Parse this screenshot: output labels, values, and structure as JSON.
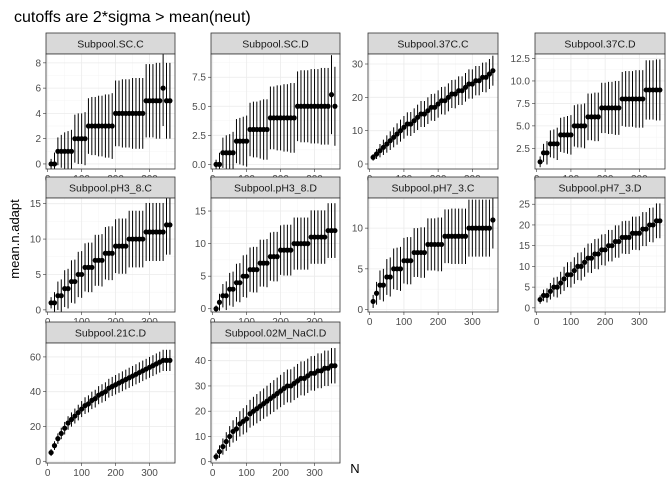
{
  "chart_data": {
    "type": "scatter",
    "title": "cutoffs are 2*sigma > mean(neut)",
    "xlabel": "N",
    "ylabel": "mean.n.adapt",
    "xlim": [
      -5,
      375
    ],
    "x_ticks": [
      0,
      100,
      200,
      300
    ],
    "grid": true,
    "facets": [
      {
        "name": "Subpool.SC.C",
        "ylim": [
          -0.4,
          8.7
        ],
        "y_ticks": [
          0,
          2,
          4,
          6,
          8
        ],
        "y_tick_labels": [
          "0",
          "2",
          "4",
          "6",
          "8"
        ],
        "x": [
          10,
          20,
          30,
          40,
          50,
          60,
          70,
          80,
          90,
          100,
          110,
          120,
          130,
          140,
          150,
          160,
          170,
          180,
          190,
          200,
          210,
          220,
          230,
          240,
          250,
          260,
          270,
          280,
          290,
          300,
          310,
          320,
          330,
          340,
          350,
          360
        ],
        "y": [
          0,
          0,
          1,
          1,
          1,
          1,
          1,
          2,
          2,
          2,
          2,
          3,
          3,
          3,
          3,
          3,
          3,
          3,
          3,
          4,
          4,
          4,
          4,
          4,
          4,
          4,
          4,
          4,
          5,
          5,
          5,
          5,
          5,
          6,
          5,
          5
        ],
        "err": [
          0.4,
          0.9,
          1.1,
          1.3,
          1.5,
          1.6,
          1.7,
          1.9,
          2.0,
          2.0,
          2.1,
          2.2,
          2.3,
          2.3,
          2.4,
          2.4,
          2.5,
          2.5,
          2.6,
          2.6,
          2.6,
          2.7,
          2.7,
          2.7,
          2.8,
          2.8,
          2.8,
          2.8,
          2.9,
          2.9,
          2.9,
          3.0,
          3.0,
          3.0,
          3.0,
          3.0
        ]
      },
      {
        "name": "Subpool.SC.D",
        "ylim": [
          -0.4,
          9.5
        ],
        "y_ticks": [
          0,
          2.5,
          5,
          7.5
        ],
        "y_tick_labels": [
          "0.0",
          "2.5",
          "5.0",
          "7.5"
        ],
        "x": [
          10,
          20,
          30,
          40,
          50,
          60,
          70,
          80,
          90,
          100,
          110,
          120,
          130,
          140,
          150,
          160,
          170,
          180,
          190,
          200,
          210,
          220,
          230,
          240,
          250,
          260,
          270,
          280,
          290,
          300,
          310,
          320,
          330,
          340,
          350,
          360
        ],
        "y": [
          0,
          0,
          1,
          1,
          1,
          1,
          2,
          2,
          2,
          2,
          3,
          3,
          3,
          3,
          3,
          3,
          4,
          4,
          4,
          4,
          4,
          4,
          4,
          4,
          5,
          5,
          5,
          5,
          5,
          5,
          5,
          5,
          5,
          5,
          6,
          5
        ],
        "err": [
          0.4,
          1.0,
          1.3,
          1.5,
          1.6,
          1.8,
          1.9,
          2.0,
          2.1,
          2.2,
          2.3,
          2.4,
          2.4,
          2.5,
          2.6,
          2.6,
          2.7,
          2.7,
          2.8,
          2.8,
          2.9,
          2.9,
          3.0,
          3.0,
          3.0,
          3.1,
          3.1,
          3.1,
          3.2,
          3.2,
          3.2,
          3.3,
          3.3,
          3.3,
          3.4,
          3.4
        ]
      },
      {
        "name": "Subpool.37C.C",
        "ylim": [
          -1.5,
          33
        ],
        "y_ticks": [
          0,
          10,
          20,
          30
        ],
        "y_tick_labels": [
          "0",
          "10",
          "20",
          "30"
        ],
        "x": [
          10,
          20,
          30,
          40,
          50,
          60,
          70,
          80,
          90,
          100,
          110,
          120,
          130,
          140,
          150,
          160,
          170,
          180,
          190,
          200,
          210,
          220,
          230,
          240,
          250,
          260,
          270,
          280,
          290,
          300,
          310,
          320,
          330,
          340,
          350,
          360
        ],
        "y": [
          2,
          3,
          4,
          5,
          6,
          7,
          8,
          9,
          10,
          11,
          12,
          12,
          13,
          14,
          15,
          15,
          16,
          17,
          17,
          18,
          19,
          19,
          20,
          21,
          21,
          22,
          22,
          23,
          24,
          24,
          25,
          25,
          26,
          26,
          27,
          28
        ],
        "err": [
          1.0,
          1.5,
          2.0,
          2.3,
          2.6,
          2.8,
          3.0,
          3.2,
          3.3,
          3.4,
          3.5,
          3.6,
          3.7,
          3.8,
          3.9,
          3.9,
          4.0,
          4.0,
          4.1,
          4.1,
          4.1,
          4.2,
          4.2,
          4.2,
          4.3,
          4.3,
          4.3,
          4.3,
          4.4,
          4.4,
          4.4,
          4.4,
          4.4,
          4.5,
          4.5,
          4.5
        ]
      },
      {
        "name": "Subpool.37C.D",
        "ylim": [
          0.2,
          13
        ],
        "y_ticks": [
          2.5,
          5,
          7.5,
          10,
          12.5
        ],
        "y_tick_labels": [
          "2.5",
          "5.0",
          "7.5",
          "10.0",
          "12.5"
        ],
        "x": [
          10,
          20,
          30,
          40,
          50,
          60,
          70,
          80,
          90,
          100,
          110,
          120,
          130,
          140,
          150,
          160,
          170,
          180,
          190,
          200,
          210,
          220,
          230,
          240,
          250,
          260,
          270,
          280,
          290,
          300,
          310,
          320,
          330,
          340,
          350,
          360
        ],
        "y": [
          1,
          2,
          2,
          3,
          3,
          3,
          4,
          4,
          4,
          4,
          5,
          5,
          5,
          5,
          6,
          6,
          6,
          6,
          7,
          7,
          7,
          7,
          7,
          7,
          8,
          8,
          8,
          8,
          8,
          8,
          8,
          9,
          9,
          9,
          9,
          9
        ],
        "err": [
          0.6,
          1.0,
          1.3,
          1.5,
          1.6,
          1.8,
          1.9,
          2.0,
          2.1,
          2.2,
          2.3,
          2.4,
          2.4,
          2.5,
          2.6,
          2.6,
          2.7,
          2.7,
          2.8,
          2.8,
          2.9,
          2.9,
          3.0,
          3.0,
          3.0,
          3.1,
          3.1,
          3.1,
          3.2,
          3.2,
          3.2,
          3.3,
          3.3,
          3.3,
          3.4,
          3.4
        ]
      },
      {
        "name": "Subpool.pH3_8.C",
        "ylim": [
          -0.3,
          15.8
        ],
        "y_ticks": [
          0,
          5,
          10,
          15
        ],
        "y_tick_labels": [
          "0",
          "5",
          "10",
          "15"
        ],
        "x": [
          10,
          20,
          30,
          40,
          50,
          60,
          70,
          80,
          90,
          100,
          110,
          120,
          130,
          140,
          150,
          160,
          170,
          180,
          190,
          200,
          210,
          220,
          230,
          240,
          250,
          260,
          270,
          280,
          290,
          300,
          310,
          320,
          330,
          340,
          350,
          360
        ],
        "y": [
          1,
          1,
          2,
          2,
          3,
          3,
          4,
          4,
          5,
          5,
          6,
          6,
          6,
          7,
          7,
          7,
          8,
          8,
          8,
          9,
          9,
          9,
          9,
          10,
          10,
          10,
          10,
          10,
          11,
          11,
          11,
          11,
          11,
          11,
          12,
          12
        ],
        "err": [
          0.8,
          1.5,
          2.0,
          2.3,
          2.6,
          2.8,
          3.0,
          3.1,
          3.2,
          3.3,
          3.4,
          3.5,
          3.5,
          3.6,
          3.6,
          3.7,
          3.7,
          3.8,
          3.8,
          3.8,
          3.9,
          3.9,
          3.9,
          4.0,
          4.0,
          4.0,
          4.0,
          4.0,
          4.1,
          4.1,
          4.1,
          4.1,
          4.1,
          4.1,
          4.2,
          4.2
        ]
      },
      {
        "name": "Subpool.pH3_8.D",
        "ylim": [
          -0.5,
          17
        ],
        "y_ticks": [
          0,
          5,
          10,
          15
        ],
        "y_tick_labels": [
          "0",
          "5",
          "10",
          "15"
        ],
        "x": [
          10,
          20,
          30,
          40,
          50,
          60,
          70,
          80,
          90,
          100,
          110,
          120,
          130,
          140,
          150,
          160,
          170,
          180,
          190,
          200,
          210,
          220,
          230,
          240,
          250,
          260,
          270,
          280,
          290,
          300,
          310,
          320,
          330,
          340,
          350,
          360
        ],
        "y": [
          0,
          1,
          2,
          2,
          3,
          3,
          4,
          4,
          5,
          5,
          6,
          6,
          6,
          7,
          7,
          7,
          8,
          8,
          8,
          9,
          9,
          9,
          9,
          10,
          10,
          10,
          10,
          10,
          11,
          11,
          11,
          11,
          11,
          12,
          12,
          12
        ],
        "err": [
          0.5,
          1.3,
          1.8,
          2.2,
          2.5,
          2.7,
          2.9,
          3.0,
          3.2,
          3.3,
          3.4,
          3.5,
          3.5,
          3.6,
          3.6,
          3.7,
          3.7,
          3.8,
          3.8,
          3.8,
          3.9,
          3.9,
          3.9,
          4.0,
          4.0,
          4.0,
          4.0,
          4.0,
          4.1,
          4.1,
          4.1,
          4.1,
          4.1,
          4.2,
          4.2,
          4.2
        ]
      },
      {
        "name": "Subpool.pH7_3.C",
        "ylim": [
          -0.3,
          13.7
        ],
        "y_ticks": [
          0,
          5,
          10
        ],
        "y_tick_labels": [
          "0",
          "5",
          "10"
        ],
        "x": [
          10,
          20,
          30,
          40,
          50,
          60,
          70,
          80,
          90,
          100,
          110,
          120,
          130,
          140,
          150,
          160,
          170,
          180,
          190,
          200,
          210,
          220,
          230,
          240,
          250,
          260,
          270,
          280,
          290,
          300,
          310,
          320,
          330,
          340,
          350,
          360
        ],
        "y": [
          1,
          2,
          3,
          3,
          4,
          4,
          5,
          5,
          5,
          6,
          6,
          6,
          7,
          7,
          7,
          7,
          8,
          8,
          8,
          8,
          8,
          9,
          9,
          9,
          9,
          9,
          9,
          9,
          10,
          10,
          10,
          10,
          10,
          10,
          10,
          11
        ],
        "err": [
          0.8,
          1.4,
          1.8,
          2.0,
          2.2,
          2.4,
          2.5,
          2.6,
          2.7,
          2.8,
          2.9,
          2.9,
          3.0,
          3.0,
          3.1,
          3.1,
          3.2,
          3.2,
          3.2,
          3.3,
          3.3,
          3.3,
          3.3,
          3.4,
          3.4,
          3.4,
          3.4,
          3.4,
          3.5,
          3.5,
          3.5,
          3.5,
          3.5,
          3.5,
          3.5,
          3.5
        ]
      },
      {
        "name": "Subpool.pH7_3.D",
        "ylim": [
          -1,
          26.5
        ],
        "y_ticks": [
          0,
          5,
          10,
          15,
          20,
          25
        ],
        "y_tick_labels": [
          "0",
          "5",
          "10",
          "15",
          "20",
          "25"
        ],
        "x": [
          10,
          20,
          30,
          40,
          50,
          60,
          70,
          80,
          90,
          100,
          110,
          120,
          130,
          140,
          150,
          160,
          170,
          180,
          190,
          200,
          210,
          220,
          230,
          240,
          250,
          260,
          270,
          280,
          290,
          300,
          310,
          320,
          330,
          340,
          350,
          360
        ],
        "y": [
          2,
          3,
          3,
          4,
          5,
          5,
          6,
          7,
          8,
          8,
          9,
          10,
          10,
          11,
          12,
          12,
          13,
          13,
          14,
          14,
          15,
          15,
          16,
          16,
          17,
          17,
          17,
          18,
          18,
          18,
          19,
          19,
          20,
          20,
          21,
          21
        ],
        "err": [
          1.0,
          1.4,
          1.7,
          2.0,
          2.3,
          2.5,
          2.7,
          2.9,
          3.0,
          3.1,
          3.2,
          3.3,
          3.4,
          3.5,
          3.5,
          3.6,
          3.6,
          3.7,
          3.7,
          3.8,
          3.8,
          3.8,
          3.9,
          3.9,
          3.9,
          4.0,
          4.0,
          4.0,
          4.0,
          4.1,
          4.1,
          4.1,
          4.1,
          4.2,
          4.2,
          4.2
        ]
      },
      {
        "name": "Subpool.21C.D",
        "ylim": [
          -1,
          68
        ],
        "y_ticks": [
          0,
          20,
          40,
          60
        ],
        "y_tick_labels": [
          "0",
          "20",
          "40",
          "60"
        ],
        "x": [
          10,
          20,
          30,
          40,
          50,
          60,
          70,
          80,
          90,
          100,
          110,
          120,
          130,
          140,
          150,
          160,
          170,
          180,
          190,
          200,
          210,
          220,
          230,
          240,
          250,
          260,
          270,
          280,
          290,
          300,
          310,
          320,
          330,
          340,
          350,
          360
        ],
        "y": [
          5,
          9,
          13,
          16,
          19,
          22,
          24,
          26,
          28,
          30,
          32,
          33,
          35,
          36,
          38,
          39,
          40,
          42,
          43,
          44,
          45,
          46,
          47,
          48,
          49,
          50,
          51,
          52,
          53,
          54,
          55,
          56,
          57,
          58,
          58,
          58
        ],
        "err": [
          2.0,
          2.5,
          3.0,
          3.3,
          3.6,
          3.9,
          4.1,
          4.3,
          4.5,
          4.6,
          4.8,
          4.9,
          5.0,
          5.1,
          5.2,
          5.3,
          5.4,
          5.4,
          5.5,
          5.6,
          5.6,
          5.7,
          5.7,
          5.8,
          5.8,
          5.8,
          5.9,
          5.9,
          5.9,
          6.0,
          6.0,
          6.0,
          6.0,
          6.1,
          6.1,
          6.1
        ]
      },
      {
        "name": "Subpool.02M_NaCl.D",
        "ylim": [
          -0.5,
          47
        ],
        "y_ticks": [
          0,
          10,
          20,
          30,
          40
        ],
        "y_tick_labels": [
          "0",
          "10",
          "20",
          "30",
          "40"
        ],
        "x": [
          10,
          20,
          30,
          40,
          50,
          60,
          70,
          80,
          90,
          100,
          110,
          120,
          130,
          140,
          150,
          160,
          170,
          180,
          190,
          200,
          210,
          220,
          230,
          240,
          250,
          260,
          270,
          280,
          290,
          300,
          310,
          320,
          330,
          340,
          350,
          360
        ],
        "y": [
          2,
          4,
          6,
          8,
          10,
          12,
          13,
          15,
          16,
          17,
          19,
          20,
          21,
          22,
          23,
          24,
          25,
          26,
          27,
          28,
          29,
          30,
          30,
          31,
          32,
          33,
          33,
          34,
          35,
          35,
          36,
          36,
          37,
          37,
          38,
          38
        ],
        "err": [
          1.5,
          2.5,
          3.2,
          3.7,
          4.1,
          4.4,
          4.7,
          5.0,
          5.2,
          5.4,
          5.5,
          5.7,
          5.8,
          5.9,
          6.0,
          6.1,
          6.2,
          6.3,
          6.3,
          6.4,
          6.5,
          6.5,
          6.6,
          6.6,
          6.7,
          6.7,
          6.8,
          6.8,
          6.8,
          6.9,
          6.9,
          6.9,
          7.0,
          7.0,
          7.0,
          7.0
        ]
      }
    ]
  }
}
